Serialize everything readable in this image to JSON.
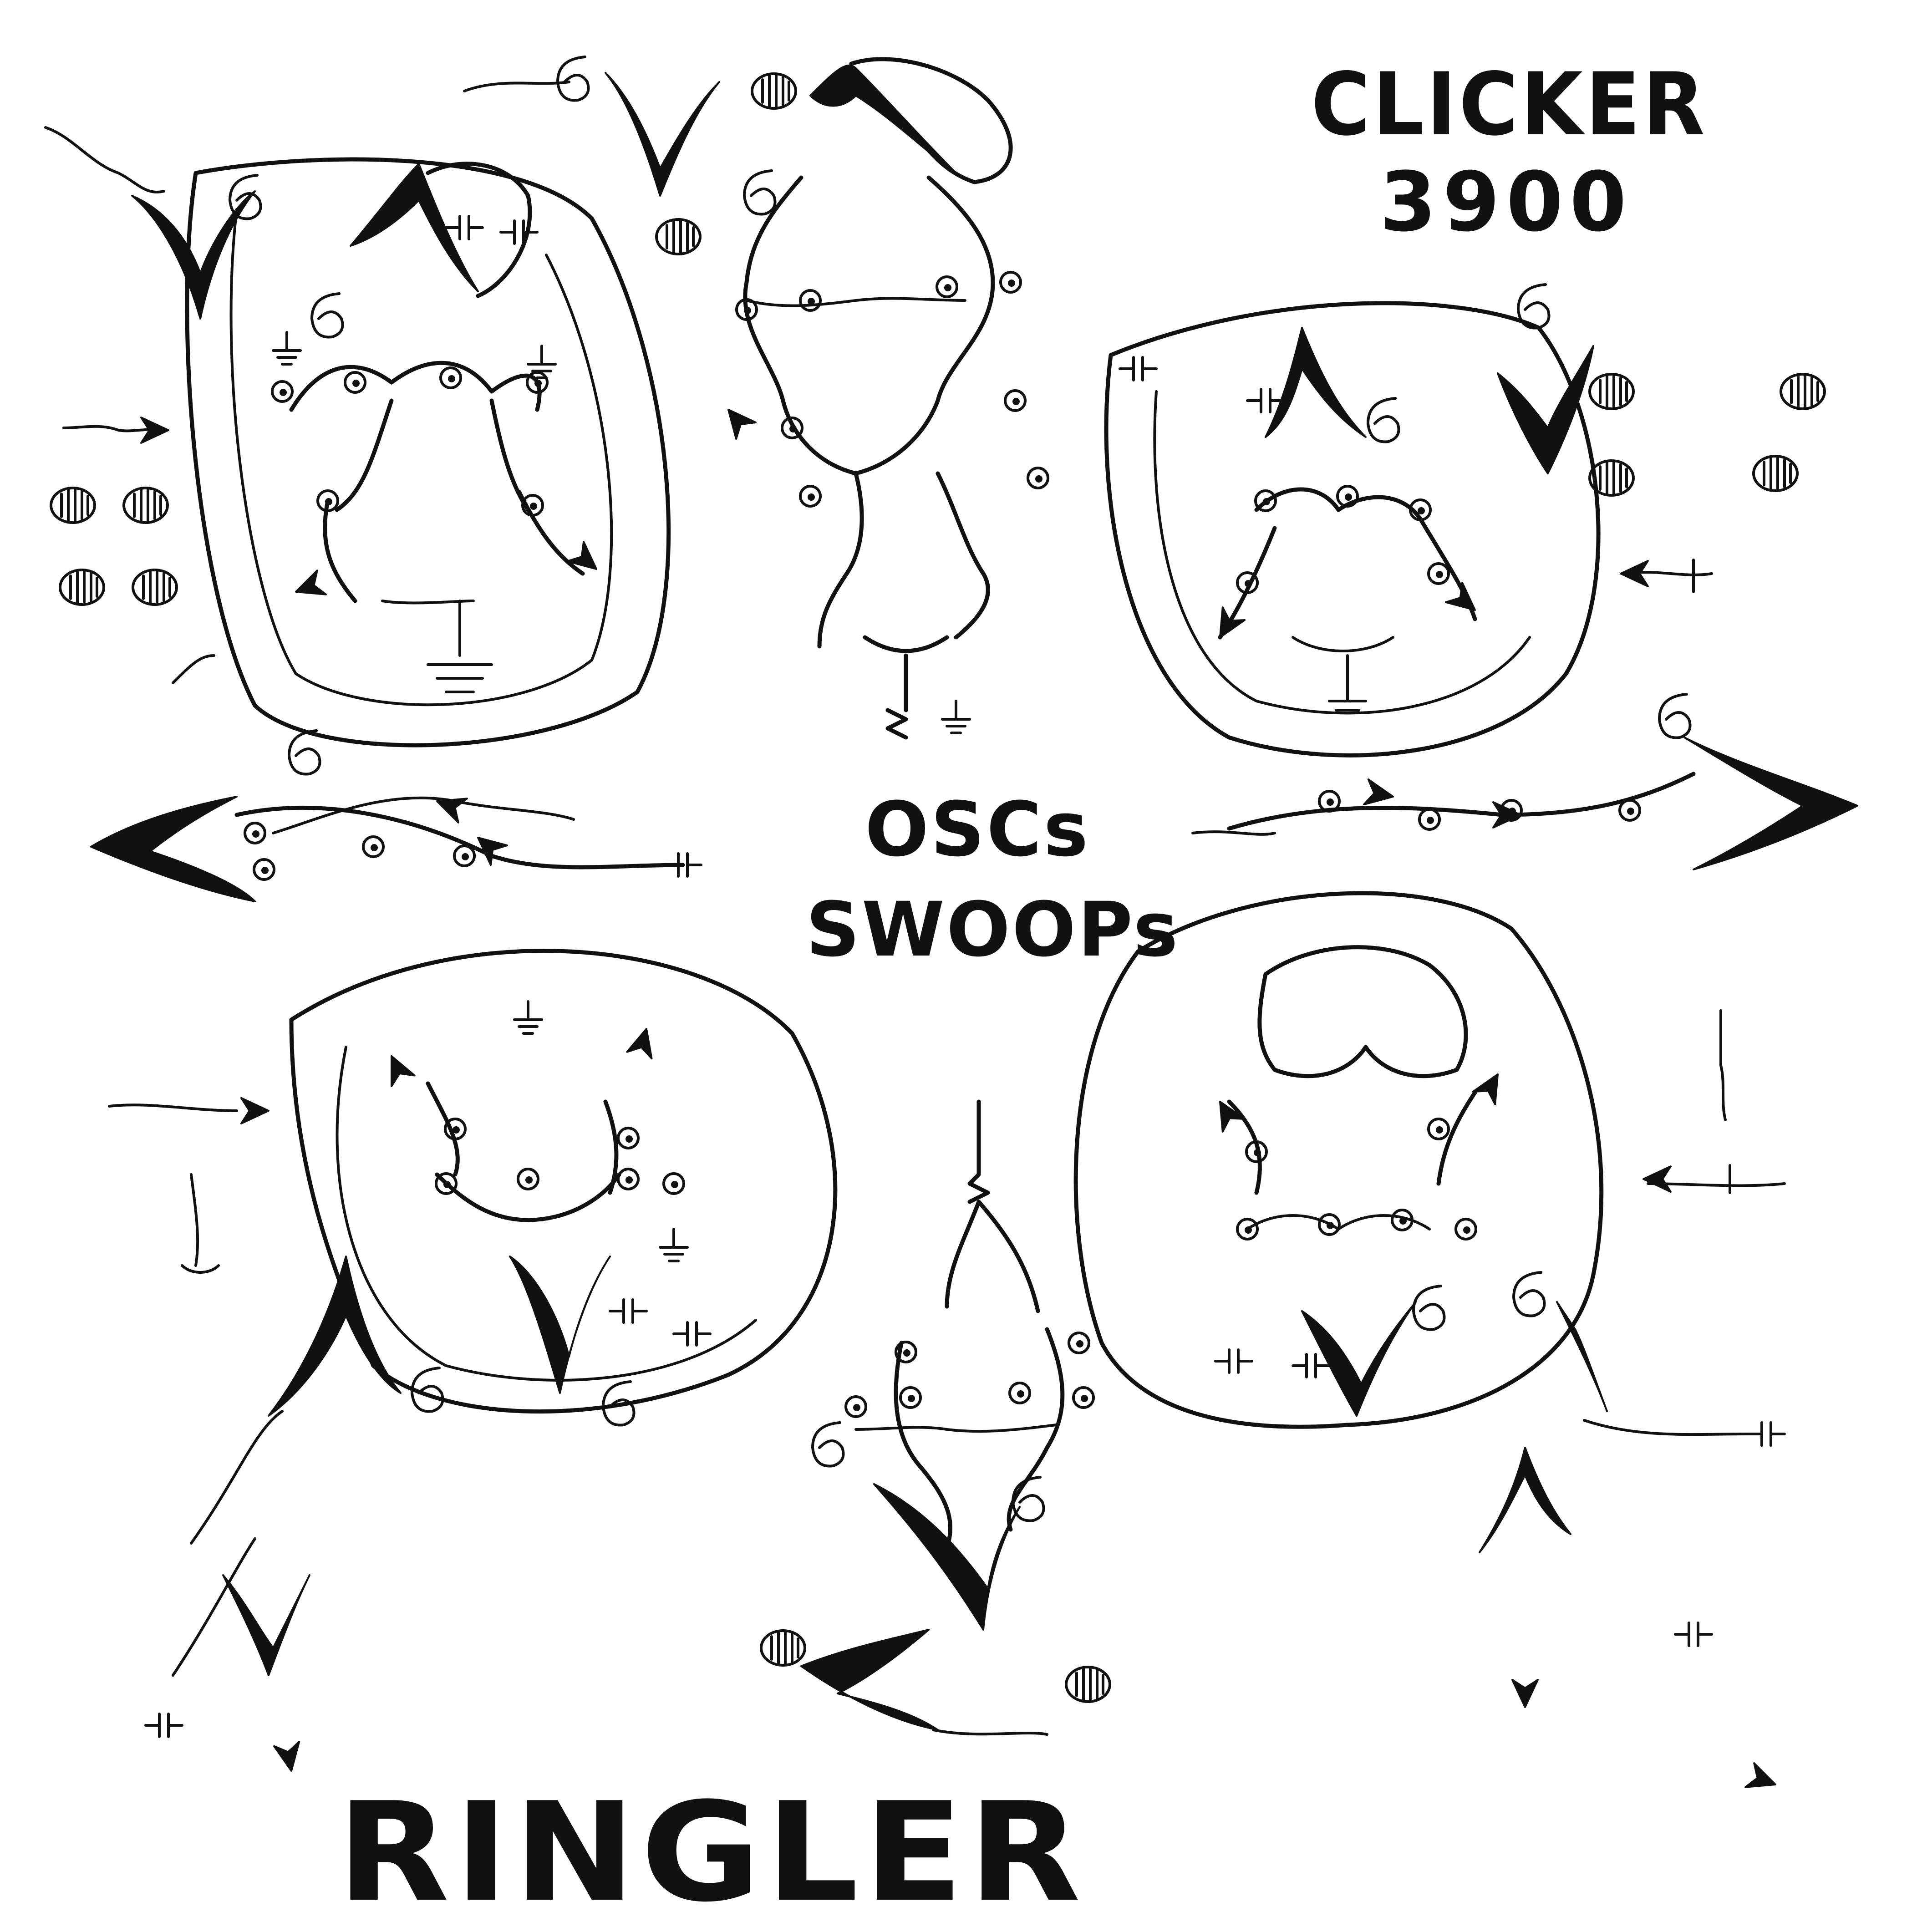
{
  "header": {
    "title_line1": "CLICKER",
    "title_line2": "3900"
  },
  "center": {
    "line1": "OSCs",
    "line2": "SWOOPs"
  },
  "footer": {
    "word": "RINGLER"
  },
  "colors": {
    "ink": "#111111",
    "paper": "#ffffff"
  }
}
